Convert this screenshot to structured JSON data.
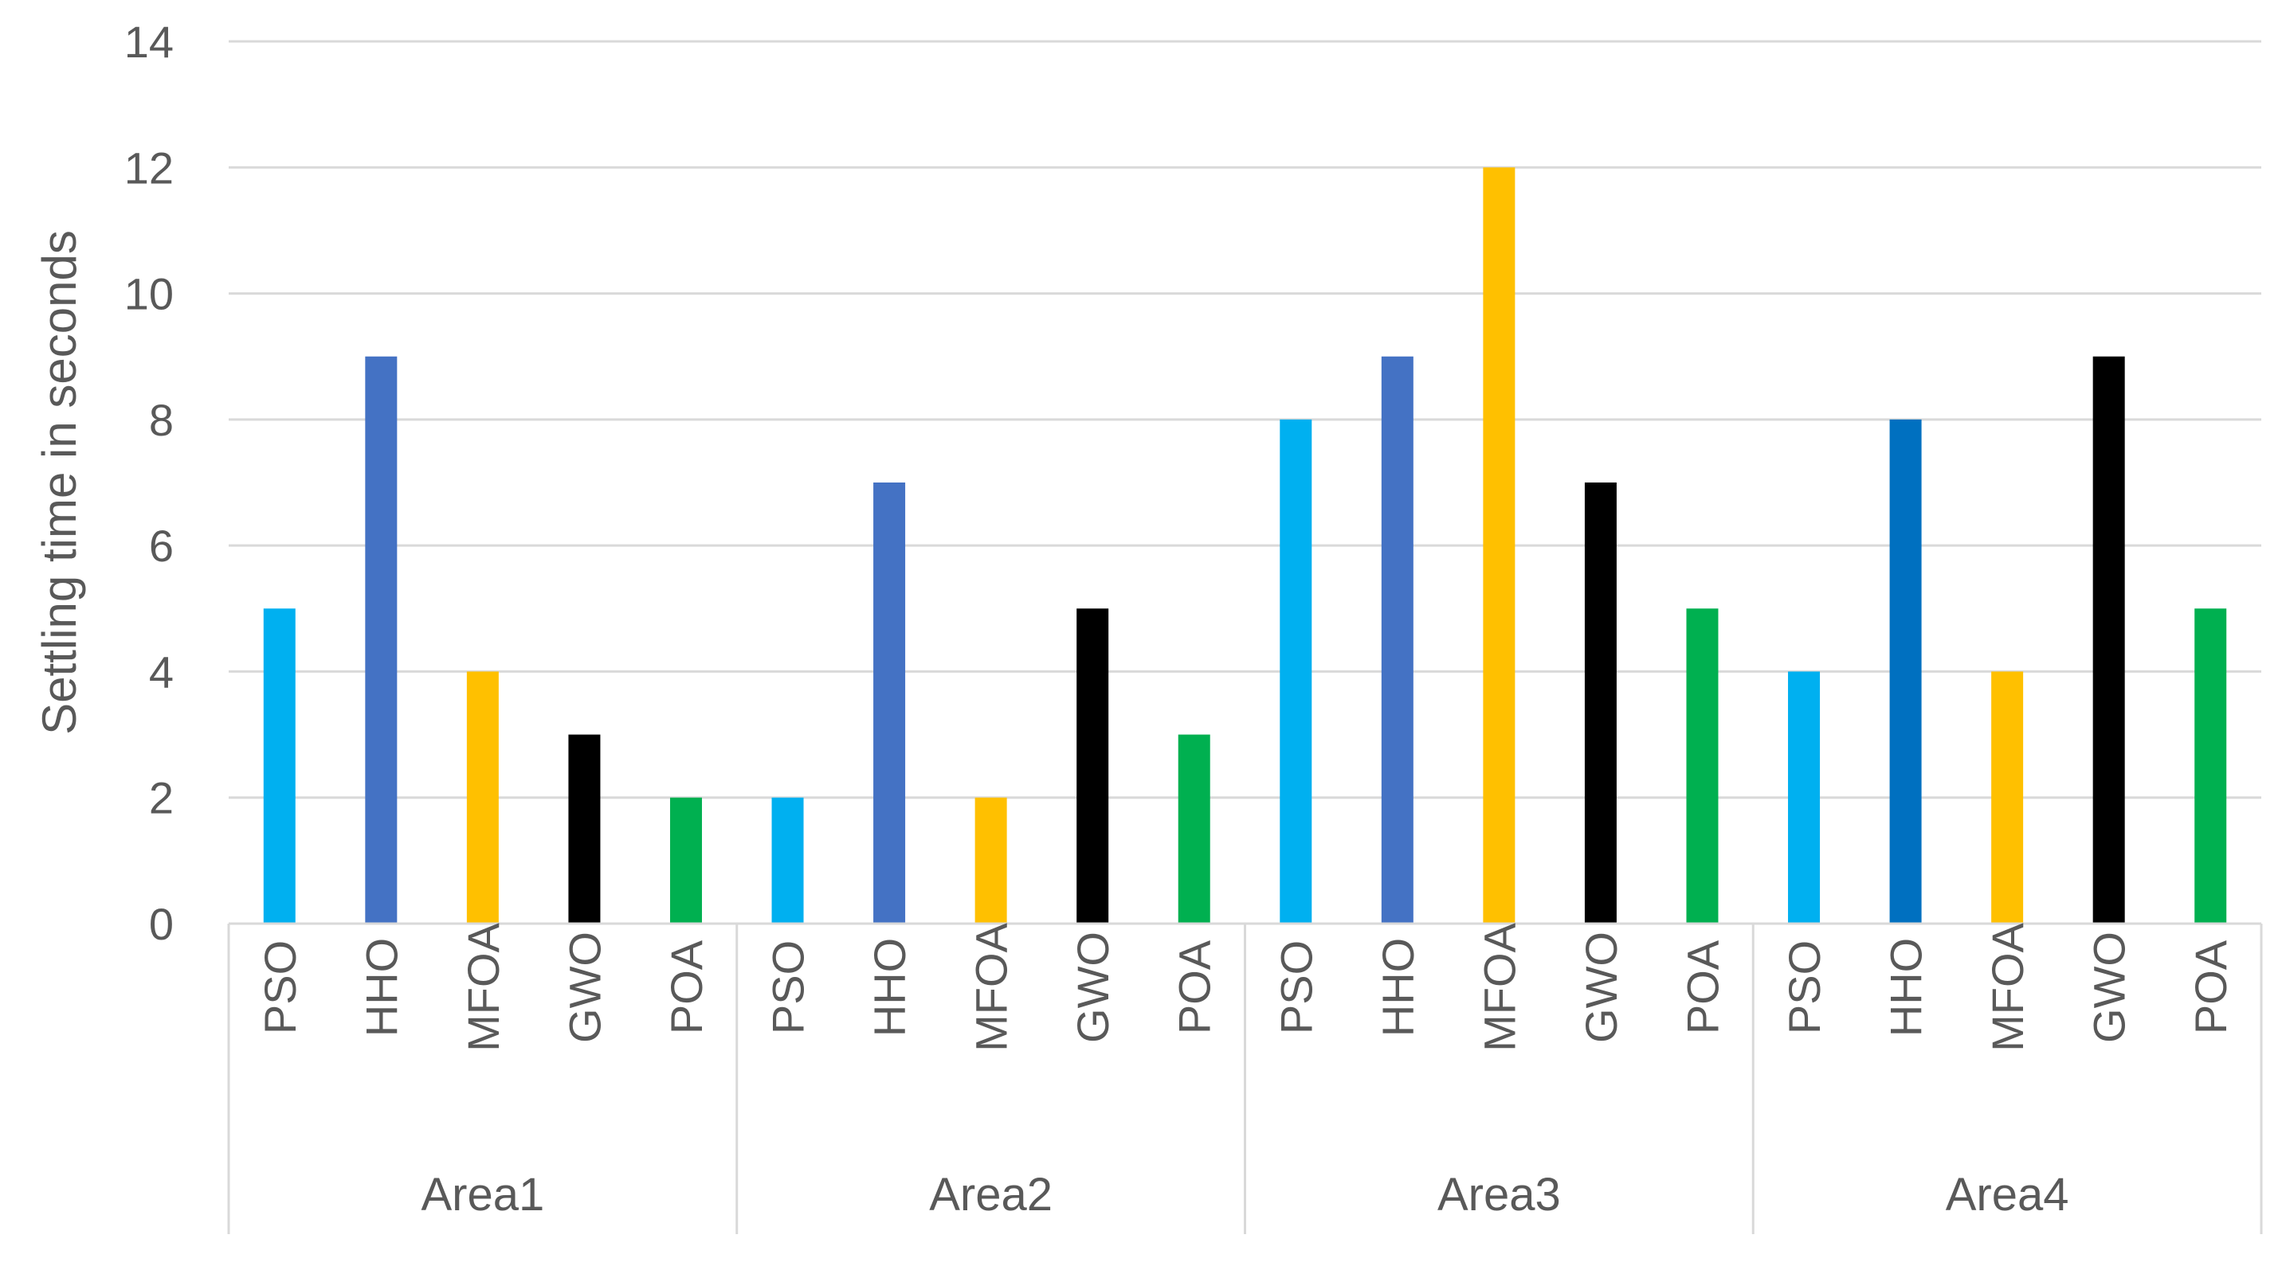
{
  "chart_data": {
    "type": "bar",
    "ylabel": "Settling time in seconds",
    "ylim": [
      0,
      14
    ],
    "yticks": [
      0,
      2,
      4,
      6,
      8,
      10,
      12,
      14
    ],
    "grid": true,
    "groups": [
      {
        "name": "Area1",
        "bars": [
          {
            "label": "PSO",
            "value": 5,
            "color": "#00b0f0"
          },
          {
            "label": "HHO",
            "value": 9,
            "color": "#4472c4"
          },
          {
            "label": "MFOA",
            "value": 4,
            "color": "#ffc000"
          },
          {
            "label": "GWO",
            "value": 3,
            "color": "#000000"
          },
          {
            "label": "POA",
            "value": 2,
            "color": "#00b050"
          }
        ]
      },
      {
        "name": "Area2",
        "bars": [
          {
            "label": "PSO",
            "value": 2,
            "color": "#00b0f0"
          },
          {
            "label": "HHO",
            "value": 7,
            "color": "#4472c4"
          },
          {
            "label": "MFOA",
            "value": 2,
            "color": "#ffc000"
          },
          {
            "label": "GWO",
            "value": 5,
            "color": "#000000"
          },
          {
            "label": "POA",
            "value": 3,
            "color": "#00b050"
          }
        ]
      },
      {
        "name": "Area3",
        "bars": [
          {
            "label": "PSO",
            "value": 8,
            "color": "#00b0f0"
          },
          {
            "label": "HHO",
            "value": 9,
            "color": "#4472c4"
          },
          {
            "label": "MFOA",
            "value": 12,
            "color": "#ffc000"
          },
          {
            "label": "GWO",
            "value": 7,
            "color": "#000000"
          },
          {
            "label": "POA",
            "value": 5,
            "color": "#00b050"
          }
        ]
      },
      {
        "name": "Area4",
        "bars": [
          {
            "label": "PSO",
            "value": 4,
            "color": "#00b0f0"
          },
          {
            "label": "HHO",
            "value": 8,
            "color": "#0070c0"
          },
          {
            "label": "MFOA",
            "value": 4,
            "color": "#ffc000"
          },
          {
            "label": "GWO",
            "value": 9,
            "color": "#000000"
          },
          {
            "label": "POA",
            "value": 5,
            "color": "#00b050"
          }
        ]
      }
    ]
  }
}
